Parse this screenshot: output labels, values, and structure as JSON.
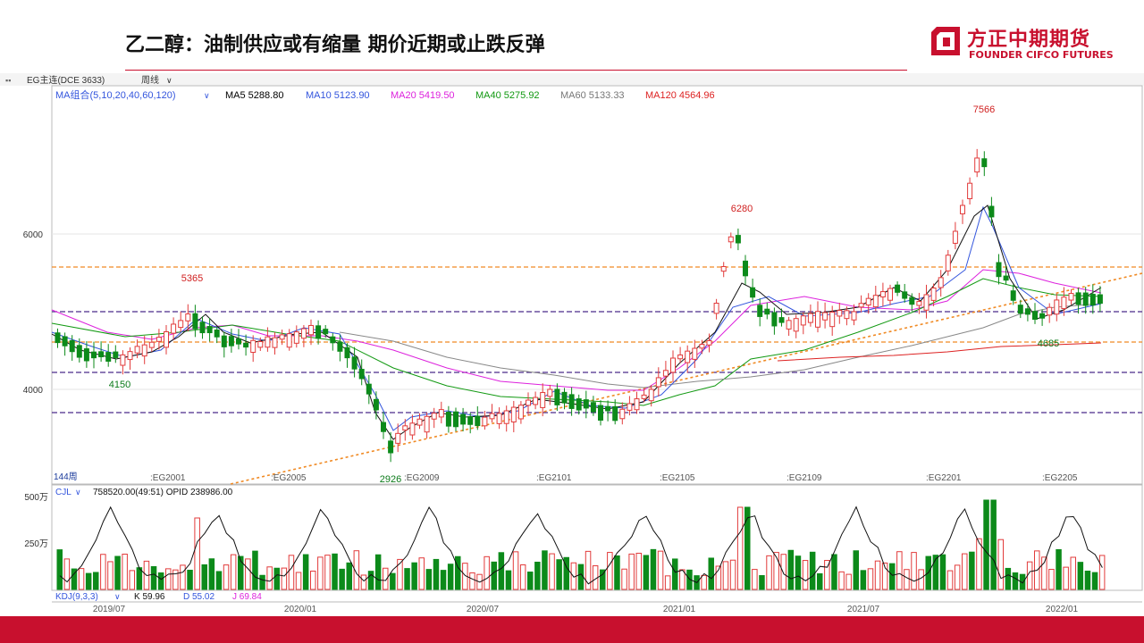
{
  "slide": {
    "title": "乙二醇：油制供应或有缩量 期价近期或止跌反弹",
    "logo_cn": "方正中期期货",
    "logo_en": "FOUNDER CIFCO FUTURES"
  },
  "toolbar": {
    "symbol": "EG主连(DCE  3633)",
    "period": "周线",
    "ma_label": "MA组合(5,10,20,40,60,120)",
    "ma_values": [
      {
        "text": "MA5 5288.80",
        "color": "#000000"
      },
      {
        "text": "MA10 5123.90",
        "color": "#3355dd"
      },
      {
        "text": "MA20 5419.50",
        "color": "#dd22dd"
      },
      {
        "text": "MA40 5275.92",
        "color": "#119911"
      },
      {
        "text": "MA60 5133.33",
        "color": "#777777"
      },
      {
        "text": "MA120 4564.96",
        "color": "#dd2222"
      }
    ]
  },
  "price_axis": {
    "ticks": [
      "6000",
      "4000"
    ]
  },
  "annotations": {
    "high1": "5365",
    "low1": "4150",
    "high2": "6280",
    "low2": "2926",
    "high3": "7566",
    "low3": "4685"
  },
  "bars_count": "144周",
  "contracts": [
    "EG2001",
    "EG2005",
    "EG2009",
    "EG2101",
    "EG2105",
    "EG2109",
    "EG2201",
    "EG2205"
  ],
  "volume_panel": {
    "label": "CJL",
    "stats": "758520.00(49:51)  OPID 238986.00",
    "ticks": [
      "500万",
      "250万"
    ]
  },
  "kdj": {
    "label": "KDJ(9,3,3)",
    "k": "K 59.96",
    "d": "D 55.02",
    "j": "J 69.84"
  },
  "dates": [
    "2019/07",
    "2020/01",
    "2020/07",
    "2021/01",
    "2021/07",
    "2022/01"
  ],
  "colors": {
    "up": "#e23b3b",
    "down": "#0c8a1a",
    "brand": "#c8102e"
  }
}
